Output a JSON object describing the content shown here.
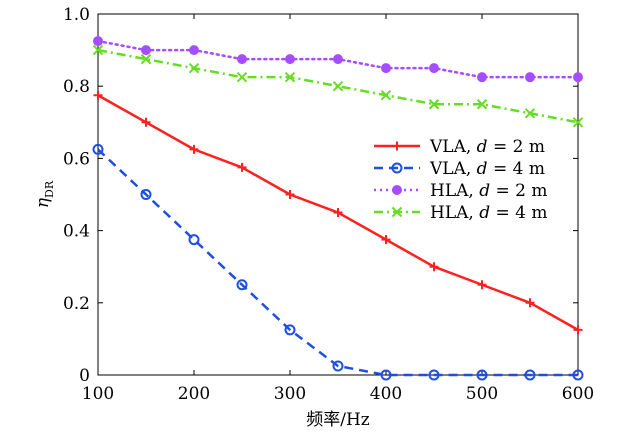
{
  "chart_data": {
    "type": "line",
    "title": "",
    "xlabel": "频率/Hz",
    "ylabel": "η",
    "ylabel_sub": "DR",
    "xlim": [
      100,
      600
    ],
    "ylim": [
      0,
      1
    ],
    "x_ticks": [
      100,
      200,
      300,
      400,
      500,
      600
    ],
    "y_ticks": [
      0,
      0.2,
      0.4,
      0.6,
      0.8,
      1.0
    ],
    "x_tick_labels": [
      "100",
      "200",
      "300",
      "400",
      "500",
      "600"
    ],
    "y_tick_labels": [
      "0",
      "0.2",
      "0.4",
      "0.6",
      "0.8",
      "1.0"
    ],
    "grid": false,
    "legend_position": "center-right",
    "x": [
      100,
      150,
      200,
      250,
      300,
      350,
      400,
      450,
      500,
      550,
      600
    ],
    "series": [
      {
        "name": "VLA, d = 2 m",
        "legend_prefix": "VLA,",
        "legend_var": "d",
        "legend_eq": "=",
        "legend_value": "2 m",
        "color": "#ff2020",
        "dash": "solid",
        "marker": "plus",
        "values": [
          0.775,
          0.7,
          0.625,
          0.575,
          0.5,
          0.45,
          0.375,
          0.3,
          0.25,
          0.2,
          0.125
        ]
      },
      {
        "name": "VLA, d = 4 m",
        "legend_prefix": "VLA,",
        "legend_var": "d",
        "legend_eq": "=",
        "legend_value": "4 m",
        "color": "#1f4fe0",
        "dash": "dashed",
        "marker": "circle-open",
        "values": [
          0.625,
          0.5,
          0.375,
          0.25,
          0.125,
          0.025,
          0.0,
          0.0,
          0.0,
          0.0,
          0.0
        ]
      },
      {
        "name": "HLA, d = 2 m",
        "legend_prefix": "HLA,",
        "legend_var": "d",
        "legend_eq": "=",
        "legend_value": "2 m",
        "color": "#a64dff",
        "dash": "dotted",
        "marker": "circle-filled",
        "values": [
          0.925,
          0.9,
          0.9,
          0.875,
          0.875,
          0.875,
          0.85,
          0.85,
          0.825,
          0.825,
          0.825
        ]
      },
      {
        "name": "HLA, d = 4 m",
        "legend_prefix": "HLA,",
        "legend_var": "d",
        "legend_eq": "=",
        "legend_value": "4 m",
        "color": "#66dd22",
        "dash": "dashdot",
        "marker": "x",
        "values": [
          0.9,
          0.875,
          0.85,
          0.825,
          0.825,
          0.8,
          0.775,
          0.75,
          0.75,
          0.725,
          0.7
        ]
      }
    ]
  }
}
